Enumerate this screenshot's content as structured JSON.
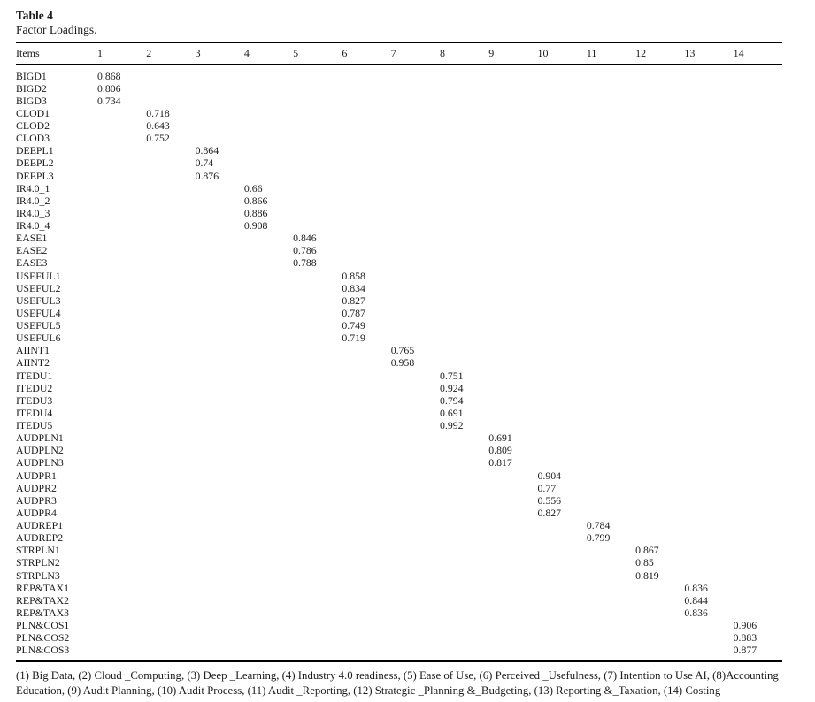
{
  "page": {
    "title": "Table 4",
    "subtitle": "Factor Loadings.",
    "footnote": "(1) Big Data, (2) Cloud _Computing, (3) Deep _Learning, (4) Industry 4.0 readiness, (5) Ease of Use, (6) Perceived _Usefulness, (7) Intention to Use AI, (8)Accounting Education, (9) Audit Planning, (10) Audit Process, (11) Audit _Reporting, (12) Strategic _Planning &_Budgeting, (13) Reporting &_Taxation, (14) Costing"
  },
  "colors": {
    "background": "#ffffff",
    "text": "#1b1b1b",
    "rule": "#000000"
  },
  "table": {
    "header": [
      "Items",
      "1",
      "2",
      "3",
      "4",
      "5",
      "6",
      "7",
      "8",
      "9",
      "10",
      "11",
      "12",
      "13",
      "14"
    ],
    "factor_count": 14,
    "rows": [
      {
        "item": "BIGD1",
        "factor": 1,
        "loading": "0.868"
      },
      {
        "item": "BIGD2",
        "factor": 1,
        "loading": "0.806"
      },
      {
        "item": "BIGD3",
        "factor": 1,
        "loading": "0.734"
      },
      {
        "item": "CLOD1",
        "factor": 2,
        "loading": "0.718"
      },
      {
        "item": "CLOD2",
        "factor": 2,
        "loading": "0.643"
      },
      {
        "item": "CLOD3",
        "factor": 2,
        "loading": "0.752"
      },
      {
        "item": "DEEPL1",
        "factor": 3,
        "loading": "0.864"
      },
      {
        "item": "DEEPL2",
        "factor": 3,
        "loading": "0.74"
      },
      {
        "item": "DEEPL3",
        "factor": 3,
        "loading": "0.876"
      },
      {
        "item": "IR4.0_1",
        "factor": 4,
        "loading": "0.66"
      },
      {
        "item": "IR4.0_2",
        "factor": 4,
        "loading": "0.866"
      },
      {
        "item": "IR4.0_3",
        "factor": 4,
        "loading": "0.886"
      },
      {
        "item": "IR4.0_4",
        "factor": 4,
        "loading": "0.908"
      },
      {
        "item": "EASE1",
        "factor": 5,
        "loading": "0.846"
      },
      {
        "item": "EASE2",
        "factor": 5,
        "loading": "0.786"
      },
      {
        "item": "EASE3",
        "factor": 5,
        "loading": "0.788"
      },
      {
        "item": "USEFUL1",
        "factor": 6,
        "loading": "0.858"
      },
      {
        "item": "USEFUL2",
        "factor": 6,
        "loading": "0.834"
      },
      {
        "item": "USEFUL3",
        "factor": 6,
        "loading": "0.827"
      },
      {
        "item": "USEFUL4",
        "factor": 6,
        "loading": "0.787"
      },
      {
        "item": "USEFUL5",
        "factor": 6,
        "loading": "0.749"
      },
      {
        "item": "USEFUL6",
        "factor": 6,
        "loading": "0.719"
      },
      {
        "item": "AIINT1",
        "factor": 7,
        "loading": "0.765"
      },
      {
        "item": "AIINT2",
        "factor": 7,
        "loading": "0.958"
      },
      {
        "item": "ITEDU1",
        "factor": 8,
        "loading": "0.751"
      },
      {
        "item": "ITEDU2",
        "factor": 8,
        "loading": "0.924"
      },
      {
        "item": "ITEDU3",
        "factor": 8,
        "loading": "0.794"
      },
      {
        "item": "ITEDU4",
        "factor": 8,
        "loading": "0.691"
      },
      {
        "item": "ITEDU5",
        "factor": 8,
        "loading": "0.992"
      },
      {
        "item": "AUDPLN1",
        "factor": 9,
        "loading": "0.691"
      },
      {
        "item": "AUDPLN2",
        "factor": 9,
        "loading": "0.809"
      },
      {
        "item": "AUDPLN3",
        "factor": 9,
        "loading": "0.817"
      },
      {
        "item": "AUDPR1",
        "factor": 10,
        "loading": "0.904"
      },
      {
        "item": "AUDPR2",
        "factor": 10,
        "loading": "0.77"
      },
      {
        "item": "AUDPR3",
        "factor": 10,
        "loading": "0.556"
      },
      {
        "item": "AUDPR4",
        "factor": 10,
        "loading": "0.827"
      },
      {
        "item": "AUDREP1",
        "factor": 11,
        "loading": "0.784"
      },
      {
        "item": "AUDREP2",
        "factor": 11,
        "loading": "0.799"
      },
      {
        "item": "STRPLN1",
        "factor": 12,
        "loading": "0.867"
      },
      {
        "item": "STRPLN2",
        "factor": 12,
        "loading": "0.85"
      },
      {
        "item": "STRPLN3",
        "factor": 12,
        "loading": "0.819"
      },
      {
        "item": "REP&TAX1",
        "factor": 13,
        "loading": "0.836"
      },
      {
        "item": "REP&TAX2",
        "factor": 13,
        "loading": "0.844"
      },
      {
        "item": "REP&TAX3",
        "factor": 13,
        "loading": "0.836"
      },
      {
        "item": "PLN&COS1",
        "factor": 14,
        "loading": "0.906"
      },
      {
        "item": "PLN&COS2",
        "factor": 14,
        "loading": "0.883"
      },
      {
        "item": "PLN&COS3",
        "factor": 14,
        "loading": "0.877"
      }
    ]
  }
}
